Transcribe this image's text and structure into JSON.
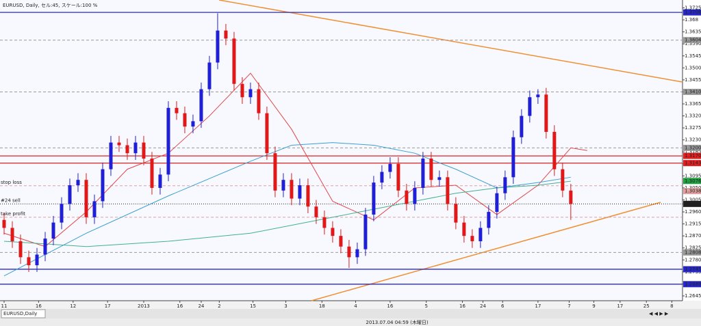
{
  "chart_data": {
    "type": "candlestick",
    "title": "EURUSD, Daily, セル:45, スケール:100 %",
    "tab": "EURUSD,Daily",
    "status": "2013.07.04 04:59 (木曜日)",
    "up_color": "#1f1fd6",
    "down_color": "#e01818",
    "xlim": [
      -0.5,
      82.6
    ],
    "ylim": [
      1.2627,
      1.3734
    ],
    "xticks": [
      {
        "value": 0,
        "label": "11"
      },
      {
        "value": 4.2,
        "label": "16"
      },
      {
        "value": 8.4,
        "label": "12"
      },
      {
        "value": 12.6,
        "label": "17"
      },
      {
        "value": 17,
        "label": "2013"
      },
      {
        "value": 21.4,
        "label": "16"
      },
      {
        "value": 24,
        "label": "24"
      },
      {
        "value": 26.2,
        "label": "2"
      },
      {
        "value": 30.3,
        "label": "15"
      },
      {
        "value": 34.3,
        "label": "3"
      },
      {
        "value": 38.7,
        "label": "18"
      },
      {
        "value": 42.8,
        "label": "4"
      },
      {
        "value": 47,
        "label": "16"
      },
      {
        "value": 51.4,
        "label": "5"
      },
      {
        "value": 55.8,
        "label": "16"
      },
      {
        "value": 58.3,
        "label": "24"
      },
      {
        "value": 60.7,
        "label": "6"
      },
      {
        "value": 65,
        "label": "17"
      },
      {
        "value": 68.8,
        "label": "7"
      },
      {
        "value": 71.8,
        "label": "9"
      },
      {
        "value": 75,
        "label": "17"
      },
      {
        "value": 78.2,
        "label": "25"
      },
      {
        "value": 81.3,
        "label": "8"
      }
    ],
    "yticks": [
      1.3725,
      1.368,
      1.3635,
      {
        "value": 1.359,
        "label": "1.3590"
      },
      1.3545,
      {
        "value": 1.35,
        "label": "1.3500"
      },
      1.3455,
      {
        "value": 1.341,
        "label": "1.3410"
      },
      1.3365,
      {
        "value": 1.332,
        "label": "1.3320"
      },
      1.3275,
      {
        "value": 1.323,
        "label": "1.3230"
      },
      1.3185,
      {
        "value": 1.314,
        "label": "1.3140"
      },
      1.3095,
      {
        "value": 1.305,
        "label": "1.3050"
      },
      1.3005,
      {
        "value": 1.296,
        "label": "1.2960"
      },
      1.2915,
      {
        "value": 1.287,
        "label": "1.2870"
      },
      1.2825,
      {
        "value": 1.278,
        "label": "1.2780"
      },
      1.2735,
      {
        "value": 1.269,
        "label": "1.2690"
      },
      1.2645
    ],
    "open": [
      1.293,
      1.29,
      1.285,
      1.279,
      1.276,
      1.28,
      1.286,
      1.292,
      1.299,
      1.306,
      1.308,
      1.294,
      1.3,
      1.312,
      1.322,
      1.321,
      1.318,
      1.322,
      1.316,
      1.305,
      1.31,
      1.335,
      1.333,
      1.328,
      1.33,
      1.342,
      1.352,
      1.364,
      1.361,
      1.344,
      1.339,
      1.342,
      1.333,
      1.318,
      1.304,
      1.308,
      1.301,
      1.306,
      1.298,
      1.294,
      1.29,
      1.287,
      1.283,
      1.279,
      1.282,
      1.295,
      1.307,
      1.311,
      1.314,
      1.304,
      1.299,
      1.305,
      1.316,
      1.308,
      1.309,
      1.299,
      1.292,
      1.287,
      1.285,
      1.29,
      1.296,
      1.303,
      1.309,
      1.324,
      1.332,
      1.339,
      1.34,
      1.326,
      1.312,
      1.304
    ],
    "high": [
      1.2955,
      1.2925,
      1.2875,
      1.2815,
      1.2825,
      1.2885,
      1.2945,
      1.3015,
      1.3085,
      1.3105,
      1.3105,
      1.3025,
      1.3145,
      1.3245,
      1.3245,
      1.3235,
      1.3245,
      1.3245,
      1.3185,
      1.3125,
      1.3375,
      1.3375,
      1.3355,
      1.3325,
      1.3445,
      1.3545,
      1.3705,
      1.3665,
      1.3635,
      1.3465,
      1.3445,
      1.3445,
      1.3355,
      1.3205,
      1.3105,
      1.3105,
      1.3085,
      1.3085,
      1.3005,
      1.2965,
      1.2925,
      1.2895,
      1.2855,
      1.2845,
      1.2975,
      1.3095,
      1.3135,
      1.3165,
      1.3165,
      1.3065,
      1.3075,
      1.3185,
      1.3185,
      1.3115,
      1.3115,
      1.3015,
      1.2945,
      1.2895,
      1.2925,
      1.2985,
      1.3055,
      1.3115,
      1.3265,
      1.3345,
      1.3415,
      1.342,
      1.3425,
      1.3285,
      1.3145,
      1.3065
    ],
    "low": [
      1.2875,
      1.2825,
      1.2765,
      1.2735,
      1.2735,
      1.2775,
      1.2835,
      1.2895,
      1.2965,
      1.3035,
      1.2915,
      1.2915,
      1.2975,
      1.3095,
      1.3185,
      1.3155,
      1.3155,
      1.3135,
      1.3025,
      1.3025,
      1.3075,
      1.3305,
      1.3255,
      1.3255,
      1.3275,
      1.3395,
      1.3495,
      1.3585,
      1.3415,
      1.3365,
      1.3365,
      1.3305,
      1.3155,
      1.3015,
      1.3015,
      1.2985,
      1.2985,
      1.2955,
      1.2915,
      1.2875,
      1.2845,
      1.2805,
      1.275,
      1.2765,
      1.2795,
      1.2925,
      1.3045,
      1.3085,
      1.3015,
      1.2965,
      1.2965,
      1.3025,
      1.3055,
      1.3055,
      1.2965,
      1.2895,
      1.2845,
      1.2825,
      1.2825,
      1.2875,
      1.2935,
      1.3005,
      1.3065,
      1.3215,
      1.3295,
      1.3365,
      1.3235,
      1.3095,
      1.3015,
      1.293
    ],
    "close": [
      1.29,
      1.285,
      1.279,
      1.276,
      1.28,
      1.286,
      1.292,
      1.299,
      1.306,
      1.308,
      1.294,
      1.3,
      1.312,
      1.322,
      1.321,
      1.318,
      1.322,
      1.316,
      1.305,
      1.31,
      1.335,
      1.333,
      1.328,
      1.33,
      1.342,
      1.352,
      1.364,
      1.361,
      1.344,
      1.339,
      1.342,
      1.333,
      1.318,
      1.304,
      1.308,
      1.301,
      1.306,
      1.298,
      1.294,
      1.29,
      1.287,
      1.283,
      1.279,
      1.282,
      1.295,
      1.307,
      1.311,
      1.314,
      1.304,
      1.299,
      1.305,
      1.316,
      1.308,
      1.309,
      1.299,
      1.292,
      1.287,
      1.285,
      1.29,
      1.296,
      1.303,
      1.309,
      1.324,
      1.332,
      1.339,
      1.34,
      1.326,
      1.312,
      1.304,
      1.299
    ],
    "ma": [
      {
        "color": "#e04848",
        "x": [
          0,
          5,
          10,
          15,
          20,
          25,
          30,
          35,
          40,
          45,
          50,
          55,
          60,
          65,
          69,
          71
        ],
        "values": [
          1.288,
          1.283,
          1.296,
          1.312,
          1.318,
          1.332,
          1.348,
          1.327,
          1.3,
          1.293,
          1.305,
          1.306,
          1.295,
          1.306,
          1.32,
          1.319
        ]
      },
      {
        "color": "#3aa0d0",
        "x": [
          0,
          10,
          20,
          30,
          35,
          40,
          45,
          50,
          55,
          60,
          65,
          69
        ],
        "values": [
          1.272,
          1.288,
          1.302,
          1.315,
          1.321,
          1.322,
          1.321,
          1.318,
          1.312,
          1.305,
          1.307,
          1.309
        ]
      },
      {
        "color": "#40b090",
        "x": [
          0,
          10,
          20,
          30,
          40,
          45,
          50,
          55,
          60,
          65,
          69
        ],
        "values": [
          1.285,
          1.283,
          1.285,
          1.288,
          1.294,
          1.297,
          1.3,
          1.303,
          1.305,
          1.306,
          1.3075
        ]
      }
    ],
    "hlines": [
      {
        "value": 1.3708,
        "color": "#2828c8",
        "style": "solid",
        "label": "1.3708"
      },
      {
        "value": 1.3604,
        "color": "#999999",
        "style": "dash",
        "label": "1.3604"
      },
      {
        "value": 1.341,
        "color": "#999999",
        "style": "dash",
        "label": "1.3410"
      },
      {
        "value": 1.32,
        "color": "#999999",
        "style": "dash",
        "label": "1.3200"
      },
      {
        "value": 1.317,
        "color": "#e02020",
        "style": "solid",
        "label": "1.3170"
      },
      {
        "value": 1.3143,
        "color": "#e02020",
        "style": "solid",
        "label": "1.3143"
      },
      {
        "value": 1.3076,
        "color": "#20a040",
        "style": "none",
        "label": "1.3076"
      },
      {
        "value": 1.3058,
        "color": "#e0a0a0",
        "style": "dash",
        "text": "stop loss"
      },
      {
        "value": 1.3038,
        "color": "#e0a0a0",
        "style": "none",
        "label": "1.3038"
      },
      {
        "value": 1.299,
        "color": "#202020",
        "style": "dot",
        "label": "1.2990",
        "text": "#24 sell"
      },
      {
        "value": 1.294,
        "color": "#e0a0a0",
        "style": "dash",
        "text": "take profit"
      },
      {
        "value": 1.2808,
        "color": "#999999",
        "style": "dash",
        "label": "1.2808"
      },
      {
        "value": 1.2745,
        "color": "#2828c8",
        "style": "solid",
        "label": "1.2745"
      },
      {
        "value": 1.2689,
        "color": "#2828c8",
        "style": "solid",
        "label": "1.2689"
      }
    ]
  }
}
